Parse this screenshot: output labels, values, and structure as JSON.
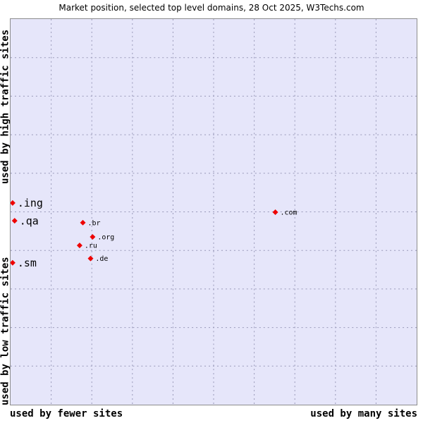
{
  "title": "Market position, selected top level domains, 28 Oct 2025, W3Techs.com",
  "axes": {
    "y_top": "used by high traffic sites",
    "y_bottom": "used by low traffic sites",
    "x_left": "used by fewer sites",
    "x_right": "used by many sites"
  },
  "colors": {
    "plot_bg": "#e6e6fa",
    "point": "#ee0000",
    "grid": "#9898b8",
    "border": "#8c8c8c"
  },
  "chart_data": {
    "type": "scatter",
    "title": "Market position, selected top level domains, 28 Oct 2025, W3Techs.com",
    "xlabel_left": "used by fewer sites",
    "xlabel_right": "used by many sites",
    "ylabel_top": "used by high traffic sites",
    "ylabel_bottom": "used by low traffic sites",
    "x_range": [
      0,
      100
    ],
    "y_range": [
      0,
      100
    ],
    "grid_divisions": 10,
    "grid_on": true,
    "points": [
      {
        "label": ".ing",
        "x": 0.5,
        "y": 52.3,
        "size": "large"
      },
      {
        "label": ".qa",
        "x": 1.0,
        "y": 47.7,
        "size": "large"
      },
      {
        "label": ".sm",
        "x": 0.5,
        "y": 36.8,
        "size": "large"
      },
      {
        "label": ".br",
        "x": 17.8,
        "y": 47.2,
        "size": "small"
      },
      {
        "label": ".org",
        "x": 20.2,
        "y": 43.5,
        "size": "small"
      },
      {
        "label": ".ru",
        "x": 17.0,
        "y": 41.3,
        "size": "small"
      },
      {
        "label": ".de",
        "x": 19.7,
        "y": 37.9,
        "size": "small"
      },
      {
        "label": ".com",
        "x": 65.2,
        "y": 49.9,
        "size": "small"
      }
    ]
  }
}
